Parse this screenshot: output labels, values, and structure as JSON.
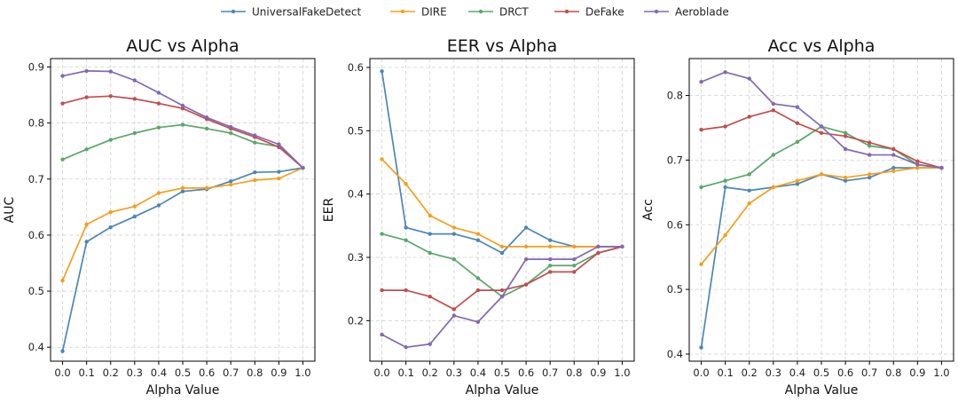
{
  "colors": {
    "UniversalFakeDetect": "#4c86b6",
    "DIRE": "#f59f1c",
    "DRCT": "#5aa769",
    "DeFake": "#c44c4e",
    "Aeroblade": "#8269b4"
  },
  "legend": [
    "UniversalFakeDetect",
    "DIRE",
    "DRCT",
    "DeFake",
    "Aeroblade"
  ],
  "chart_data": [
    {
      "type": "line",
      "title": "AUC vs Alpha",
      "xlabel": "Alpha Value",
      "ylabel": "AUC",
      "x": [
        0.0,
        0.1,
        0.2,
        0.3,
        0.4,
        0.5,
        0.6,
        0.7,
        0.8,
        0.9,
        1.0
      ],
      "xticks": [
        "0.0",
        "0.1",
        "0.2",
        "0.3",
        "0.4",
        "0.5",
        "0.6",
        "0.7",
        "0.8",
        "0.9",
        "1.0"
      ],
      "ylim": [
        0.375,
        0.915
      ],
      "yticks": [
        "0.4",
        "0.5",
        "0.6",
        "0.7",
        "0.8",
        "0.9"
      ],
      "grid": true,
      "series": [
        {
          "name": "UniversalFakeDetect",
          "values": [
            0.393,
            0.588,
            0.614,
            0.633,
            0.653,
            0.678,
            0.682,
            0.696,
            0.712,
            0.713,
            0.72
          ]
        },
        {
          "name": "DIRE",
          "values": [
            0.519,
            0.619,
            0.641,
            0.651,
            0.675,
            0.684,
            0.684,
            0.69,
            0.698,
            0.701,
            0.72
          ]
        },
        {
          "name": "DRCT",
          "values": [
            0.735,
            0.753,
            0.77,
            0.782,
            0.792,
            0.797,
            0.79,
            0.782,
            0.765,
            0.758,
            0.72
          ]
        },
        {
          "name": "DeFake",
          "values": [
            0.835,
            0.846,
            0.848,
            0.843,
            0.835,
            0.826,
            0.807,
            0.79,
            0.775,
            0.757,
            0.72
          ]
        },
        {
          "name": "Aeroblade",
          "values": [
            0.884,
            0.893,
            0.892,
            0.876,
            0.854,
            0.831,
            0.81,
            0.793,
            0.778,
            0.762,
            0.72
          ]
        }
      ]
    },
    {
      "type": "line",
      "title": "EER vs Alpha",
      "xlabel": "Alpha Value",
      "ylabel": "EER",
      "x": [
        0.0,
        0.1,
        0.2,
        0.3,
        0.4,
        0.5,
        0.6,
        0.7,
        0.8,
        0.9,
        1.0
      ],
      "xticks": [
        "0.0",
        "0.1",
        "0.2",
        "0.3",
        "0.4",
        "0.5",
        "0.6",
        "0.7",
        "0.8",
        "0.9",
        "1.0"
      ],
      "ylim": [
        0.136,
        0.614
      ],
      "yticks": [
        "0.2",
        "0.3",
        "0.4",
        "0.5",
        "0.6"
      ],
      "grid": true,
      "series": [
        {
          "name": "UniversalFakeDetect",
          "values": [
            0.594,
            0.347,
            0.337,
            0.337,
            0.327,
            0.307,
            0.347,
            0.327,
            0.317,
            0.317,
            0.317
          ]
        },
        {
          "name": "DIRE",
          "values": [
            0.455,
            0.416,
            0.366,
            0.347,
            0.337,
            0.317,
            0.317,
            0.317,
            0.317,
            0.317,
            0.317
          ]
        },
        {
          "name": "DRCT",
          "values": [
            0.337,
            0.327,
            0.307,
            0.297,
            0.267,
            0.238,
            0.257,
            0.287,
            0.287,
            0.307,
            0.317
          ]
        },
        {
          "name": "DeFake",
          "values": [
            0.248,
            0.248,
            0.238,
            0.218,
            0.248,
            0.248,
            0.257,
            0.277,
            0.277,
            0.307,
            0.317
          ]
        },
        {
          "name": "Aeroblade",
          "values": [
            0.178,
            0.158,
            0.163,
            0.208,
            0.198,
            0.238,
            0.297,
            0.297,
            0.297,
            0.317,
            0.317
          ]
        }
      ]
    },
    {
      "type": "line",
      "title": "Acc vs Alpha",
      "xlabel": "Alpha Value",
      "ylabel": "Acc",
      "x": [
        0.0,
        0.1,
        0.2,
        0.3,
        0.4,
        0.5,
        0.6,
        0.7,
        0.8,
        0.9,
        1.0
      ],
      "xticks": [
        "0.0",
        "0.1",
        "0.2",
        "0.3",
        "0.4",
        "0.5",
        "0.6",
        "0.7",
        "0.8",
        "0.9",
        "1.0"
      ],
      "ylim": [
        0.389,
        0.857
      ],
      "yticks": [
        "0.4",
        "0.5",
        "0.6",
        "0.7",
        "0.8"
      ],
      "grid": true,
      "series": [
        {
          "name": "UniversalFakeDetect",
          "values": [
            0.41,
            0.658,
            0.653,
            0.658,
            0.663,
            0.678,
            0.668,
            0.673,
            0.688,
            0.688,
            0.688
          ]
        },
        {
          "name": "DIRE",
          "values": [
            0.539,
            0.584,
            0.633,
            0.658,
            0.668,
            0.678,
            0.673,
            0.678,
            0.683,
            0.688,
            0.688
          ]
        },
        {
          "name": "DRCT",
          "values": [
            0.658,
            0.668,
            0.678,
            0.708,
            0.728,
            0.752,
            0.742,
            0.722,
            0.717,
            0.693,
            0.688
          ]
        },
        {
          "name": "DeFake",
          "values": [
            0.747,
            0.752,
            0.767,
            0.777,
            0.757,
            0.742,
            0.737,
            0.727,
            0.717,
            0.698,
            0.688
          ]
        },
        {
          "name": "Aeroblade",
          "values": [
            0.821,
            0.836,
            0.826,
            0.787,
            0.782,
            0.752,
            0.717,
            0.708,
            0.708,
            0.693,
            0.688
          ]
        }
      ]
    }
  ]
}
